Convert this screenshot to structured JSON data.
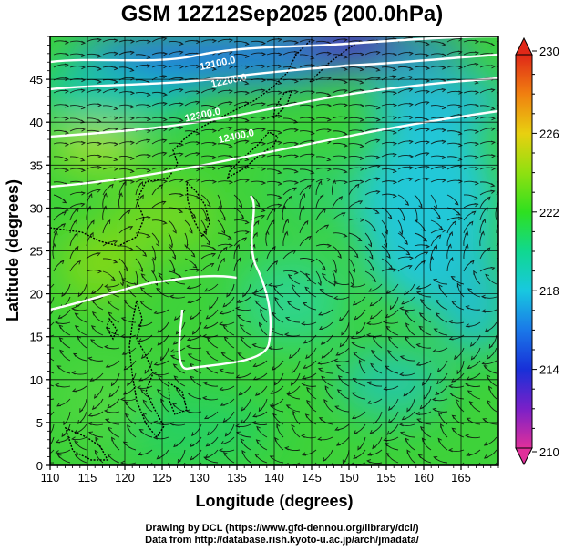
{
  "chart_data": {
    "type": "heatmap",
    "title": "GSM 12Z12Sep2025 (200.0hPa)",
    "xlabel": "Longitude (degrees)",
    "ylabel": "Latitude  (degrees)",
    "xlim": [
      110,
      170
    ],
    "ylim": [
      0,
      50
    ],
    "x_ticks": [
      "110",
      "115",
      "120",
      "125",
      "130",
      "135",
      "140",
      "145",
      "150",
      "155",
      "160",
      "165"
    ],
    "y_ticks": [
      "0",
      "5",
      "10",
      "15",
      "20",
      "25",
      "30",
      "35",
      "40",
      "45"
    ],
    "grid": true,
    "colorbar": {
      "min": 210,
      "max": 230,
      "tick_labels": [
        "210",
        "214",
        "218",
        "222",
        "226",
        "230"
      ],
      "colors": [
        "#e0309a",
        "#7a20c8",
        "#1830d8",
        "#1a78e8",
        "#18c8e0",
        "#10d890",
        "#2ee020",
        "#90e010",
        "#e8d010",
        "#f08010",
        "#e02818"
      ]
    },
    "contours": [
      {
        "label": "12100.0",
        "lon": 132.5,
        "lat": 46.5
      },
      {
        "label": "12200.0",
        "lon": 134.0,
        "lat": 44.5
      },
      {
        "label": "12300.0",
        "lon": 130.5,
        "lat": 40.5
      },
      {
        "label": "12400.0",
        "lon": 135.0,
        "lat": 38.0
      }
    ]
  },
  "credits": {
    "line1": "Drawing by DCL (https://www.gfd-dennou.org/library/dcl/)",
    "line2": "Data from http://database.rish.kyoto-u.ac.jp/arch/jmadata/"
  },
  "colors": {
    "frame": "#000000",
    "contour": "#ffffff",
    "streamline": "#0a0a0a"
  }
}
